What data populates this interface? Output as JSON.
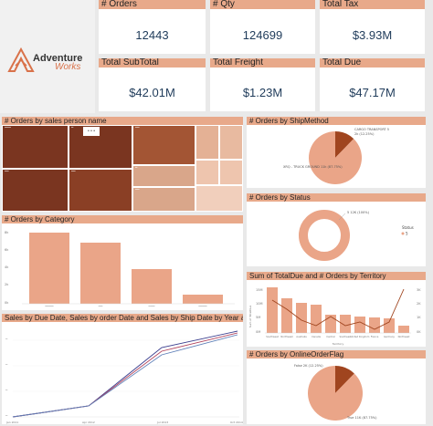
{
  "logo": {
    "text_line1": "Adventure",
    "text_line2": "Works"
  },
  "kpis": {
    "orders": {
      "label": "# Orders",
      "value": "12443"
    },
    "qty": {
      "label": "# Qty",
      "value": "124699"
    },
    "total_tax": {
      "label": "Total Tax",
      "value": "$3.93M"
    },
    "subtotal": {
      "label": "Total SubTotal",
      "value": "$42.01M"
    },
    "freight": {
      "label": "Total Freight",
      "value": "$1.23M"
    },
    "total_due": {
      "label": "Total Due",
      "value": "$47.17M"
    }
  },
  "treemap": {
    "title": "# Orders by sales person name",
    "more_options": "• • •",
    "colors": {
      "dark": "#7a3520",
      "mid": "#a35534",
      "light": "#d9a68a",
      "pale": "#eec5ae"
    }
  },
  "shipmethod": {
    "title": "# Orders by ShipMethod",
    "slices": [
      {
        "label": "CARGO TRANSPORT 5",
        "pct": 12.25,
        "color": "#a0451f"
      },
      {
        "label": "XRQ - TRUCK GROUND",
        "pct": 87.75,
        "color": "#eaa588"
      }
    ],
    "label_top": "CARGO TRANSPORT 5",
    "label_top_value": "2k (12.25%)",
    "label_bottom": "XRQ - TRUCK GROUND 11k (87.75%)"
  },
  "status": {
    "title": "# Orders by Status",
    "label": "5 12K (100%)",
    "legend_title": "Status",
    "legend_item": "5",
    "color": "#eaa588"
  },
  "category": {
    "title": "# Orders by Category",
    "y_ticks": [
      "8k",
      "6k",
      "4k",
      "2k",
      "0k"
    ],
    "color": "#eaa588"
  },
  "territory": {
    "title": "Sum of TotalDue and # Orders by Territory",
    "y_label": "Sum of TotalDue",
    "x_label": "Territory",
    "left_ticks": [
      "15M",
      "10M",
      "5M",
      "0M"
    ],
    "right_ticks": [
      "3K",
      "2K",
      "1K",
      "0K"
    ],
    "categories": [
      "Southwest",
      "Northwest",
      "Australia",
      "Canada",
      "Central",
      "Southeast",
      "United Kingdom",
      "France",
      "Germany",
      "Northeast"
    ],
    "bar_color": "#eaa588",
    "line_color": "#a0451f"
  },
  "sales_dates": {
    "title": "Sales by Due Date, Sales by order Date and Sales by Ship Date by Year and Quarter",
    "x_ticks": [
      "Jan 2011",
      "Apr 2012",
      "Jul 2013",
      "Oct 2014"
    ],
    "series_colors": [
      "#3b3f8f",
      "#b0405a",
      "#5e7fb8"
    ]
  },
  "online_flag": {
    "title": "# Orders by OnlineOrderFlag",
    "slices": [
      {
        "label": "False",
        "pct": 12.25,
        "color": "#a0451f"
      },
      {
        "label": "True",
        "pct": 87.75,
        "color": "#eaa588"
      }
    ],
    "label_top": "False 2K (12.25%)",
    "label_bottom": "True 11K (87.75%)"
  }
}
